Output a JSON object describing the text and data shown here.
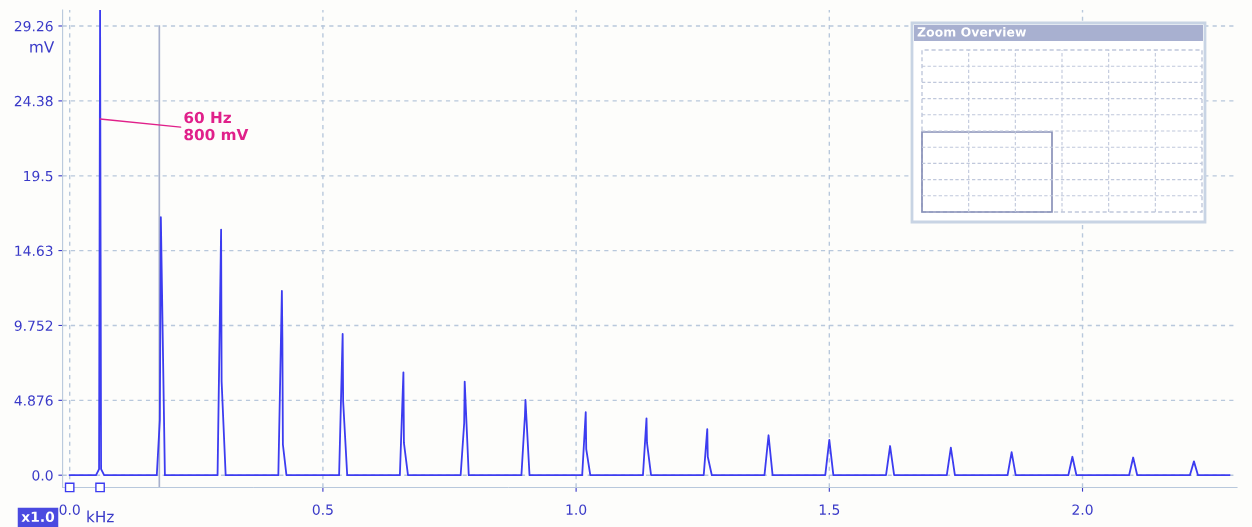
{
  "chart_data": {
    "type": "line",
    "xlabel": "kHz",
    "ylabel": "mV",
    "xlim": [
      -0.014,
      2.305
    ],
    "ylim": [
      -0.8,
      30.3
    ],
    "xticks": [
      {
        "value": 0,
        "label": "0.0"
      },
      0.5,
      {
        "value": 1,
        "label": "1.0"
      },
      1.5,
      {
        "value": 2,
        "label": "2.0"
      }
    ],
    "yticks": [
      {
        "value": 0,
        "label": "0.0"
      },
      4.876,
      9.752,
      14.63,
      19.5,
      24.38,
      29.26
    ],
    "grid": true,
    "marker": "none",
    "line_style": "solid",
    "ref_lines": [
      {
        "axis": "x",
        "value": 0.177,
        "label": null,
        "color": "#a8b0cc"
      }
    ],
    "annotations": [
      {
        "text": "60 Hz\n800 mV",
        "x": 0.06,
        "y": 23.2
      },
      "x1.0",
      "Zoom Overview"
    ],
    "series": [
      {
        "color": "#3c3cf0",
        "x": [
          0.0,
          0.052,
          0.058,
          0.06,
          0.062,
          0.068,
          0.172,
          0.178,
          0.18,
          0.188,
          0.292,
          0.299,
          0.3,
          0.308,
          0.412,
          0.419,
          0.42,
          0.421,
          0.428,
          0.532,
          0.539,
          0.54,
          0.548,
          0.652,
          0.659,
          0.66,
          0.668,
          0.772,
          0.779,
          0.78,
          0.788,
          0.892,
          0.899,
          0.9,
          0.908,
          1.012,
          1.019,
          1.02,
          1.028,
          1.132,
          1.139,
          1.14,
          1.148,
          1.252,
          1.259,
          1.26,
          1.268,
          1.372,
          1.38,
          1.388,
          1.492,
          1.5,
          1.508,
          1.612,
          1.62,
          1.628,
          1.732,
          1.74,
          1.748,
          1.852,
          1.86,
          1.868,
          1.972,
          1.98,
          1.988,
          2.092,
          2.1,
          2.108,
          2.212,
          2.22,
          2.228,
          2.29
        ],
        "values": [
          0,
          0,
          0.4,
          30.3,
          0.4,
          0,
          0,
          3.6,
          16.8,
          0,
          0,
          16.0,
          6.1,
          0,
          0,
          12.0,
          8.9,
          2.0,
          0,
          0,
          9.2,
          4.8,
          0,
          0,
          6.7,
          2.1,
          0,
          0,
          3.4,
          6.1,
          0,
          0,
          3.9,
          4.9,
          0,
          0,
          4.1,
          1.7,
          0,
          0,
          3.7,
          2.1,
          0,
          0,
          3.0,
          1.2,
          0,
          0,
          2.6,
          0,
          0,
          2.3,
          0,
          0,
          1.9,
          0,
          0,
          1.8,
          0,
          0,
          1.5,
          0,
          0,
          1.2,
          0,
          0,
          1.15,
          0,
          0,
          0.9,
          0,
          0
        ]
      }
    ]
  }
}
